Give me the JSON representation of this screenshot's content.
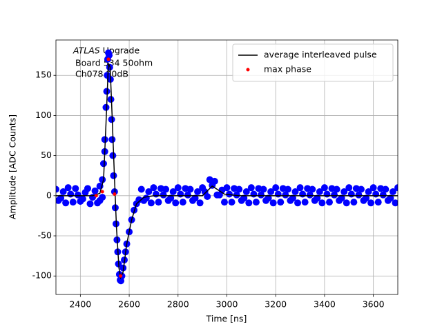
{
  "chart_data": {
    "type": "line",
    "xlabel": "Time [ns]",
    "ylabel": "Amplitude [ADC Counts]",
    "annotation": [
      "ATLAS",
      "Upgrade",
      "Board 534 50ohm",
      "Ch078 20dB"
    ],
    "xlim": [
      2300,
      3700
    ],
    "xticks": [
      2400,
      2600,
      2800,
      3000,
      3200,
      3400,
      3600
    ],
    "ylim": [
      -123,
      194
    ],
    "yticks": [
      -100,
      -50,
      0,
      50,
      100,
      150
    ],
    "grid": true,
    "legend": "upper right",
    "series": [
      {
        "type": "scatter",
        "color": "#0000ff",
        "x": [
          2300,
          2310,
          2320,
          2330,
          2340,
          2350,
          2360,
          2370,
          2380,
          2390,
          2400,
          2410,
          2420,
          2430,
          2440,
          2450,
          2460,
          2470,
          2480,
          2480,
          2490,
          2490,
          2495,
          2500,
          2500,
          2505,
          2508,
          2510,
          2512,
          2515,
          2518,
          2520,
          2523,
          2525,
          2528,
          2530,
          2533,
          2536,
          2540,
          2543,
          2546,
          2550,
          2553,
          2556,
          2560,
          2563,
          2566,
          2570,
          2575,
          2580,
          2585,
          2590,
          2600,
          2610,
          2620,
          2630,
          2640,
          2650,
          2660,
          2670,
          2680,
          2690,
          2700,
          2710,
          2720,
          2730,
          2740,
          2750,
          2760,
          2770,
          2780,
          2790,
          2800,
          2810,
          2820,
          2830,
          2840,
          2850,
          2860,
          2870,
          2880,
          2890,
          2900,
          2910,
          2920,
          2930,
          2940,
          2950,
          2960,
          2970,
          2980,
          2990,
          3000,
          3010,
          3020,
          3030,
          3040,
          3050,
          3060,
          3070,
          3080,
          3090,
          3100,
          3110,
          3120,
          3130,
          3140,
          3150,
          3160,
          3170,
          3180,
          3190,
          3200,
          3210,
          3220,
          3230,
          3240,
          3250,
          3260,
          3270,
          3280,
          3290,
          3300,
          3310,
          3320,
          3330,
          3340,
          3350,
          3360,
          3370,
          3380,
          3390,
          3400,
          3410,
          3420,
          3430,
          3440,
          3450,
          3460,
          3470,
          3480,
          3490,
          3500,
          3510,
          3520,
          3530,
          3540,
          3550,
          3560,
          3570,
          3580,
          3590,
          3600,
          3610,
          3620,
          3630,
          3640,
          3650,
          3660,
          3670,
          3680,
          3690,
          3700
        ],
        "values": [
          8,
          -6,
          -3,
          5,
          -9,
          10,
          2,
          -8,
          9,
          1,
          -7,
          -4,
          4,
          9,
          -10,
          -2,
          6,
          -9,
          12,
          -6,
          20,
          -2,
          40,
          70,
          55,
          110,
          130,
          150,
          170,
          178,
          175,
          160,
          145,
          120,
          95,
          70,
          50,
          25,
          5,
          -15,
          -35,
          -55,
          -70,
          -85,
          -98,
          -105,
          -106,
          -100,
          -90,
          -80,
          -70,
          -60,
          -45,
          -30,
          -18,
          -10,
          -5,
          8,
          -6,
          -3,
          5,
          -9,
          10,
          2,
          -8,
          9,
          1,
          8,
          -6,
          -3,
          5,
          -9,
          10,
          2,
          -8,
          9,
          1,
          8,
          -6,
          -3,
          5,
          -9,
          10,
          5,
          -1,
          20,
          13,
          18,
          1,
          1,
          7,
          -8,
          10,
          2,
          -8,
          9,
          1,
          8,
          -6,
          -3,
          5,
          -9,
          10,
          2,
          -8,
          9,
          1,
          8,
          -6,
          -3,
          5,
          -9,
          10,
          2,
          -8,
          9,
          1,
          8,
          -6,
          -3,
          5,
          -9,
          10,
          2,
          -8,
          9,
          1,
          8,
          -6,
          -3,
          5,
          -9,
          10,
          2,
          -8,
          9,
          1,
          8,
          -6,
          -3,
          5,
          -9,
          10,
          2,
          -8,
          9,
          1,
          8,
          -6,
          -3,
          5,
          -9,
          10,
          2,
          -8,
          9,
          1,
          8,
          -6,
          -3,
          5,
          -9,
          10
        ]
      },
      {
        "type": "line",
        "name": "average interleaved pulse",
        "color": "#000000",
        "x": [
          2300,
          2450,
          2480,
          2495,
          2505,
          2515,
          2522,
          2530,
          2540,
          2548,
          2558,
          2565,
          2575,
          2590,
          2610,
          2630,
          2660,
          2700,
          2900,
          2920,
          2940,
          2960,
          2990,
          3050,
          3700
        ],
        "values": [
          0,
          0,
          3,
          20,
          90,
          165,
          160,
          100,
          20,
          -40,
          -90,
          -102,
          -95,
          -60,
          -30,
          -10,
          -2,
          0,
          0,
          6,
          12,
          8,
          2,
          0,
          0
        ]
      },
      {
        "type": "scatter",
        "name": "max phase",
        "color": "#ff0000",
        "x": [
          2465,
          2490,
          2515,
          2540,
          2565
        ],
        "values": [
          0,
          5,
          170,
          2,
          -100
        ]
      }
    ]
  }
}
